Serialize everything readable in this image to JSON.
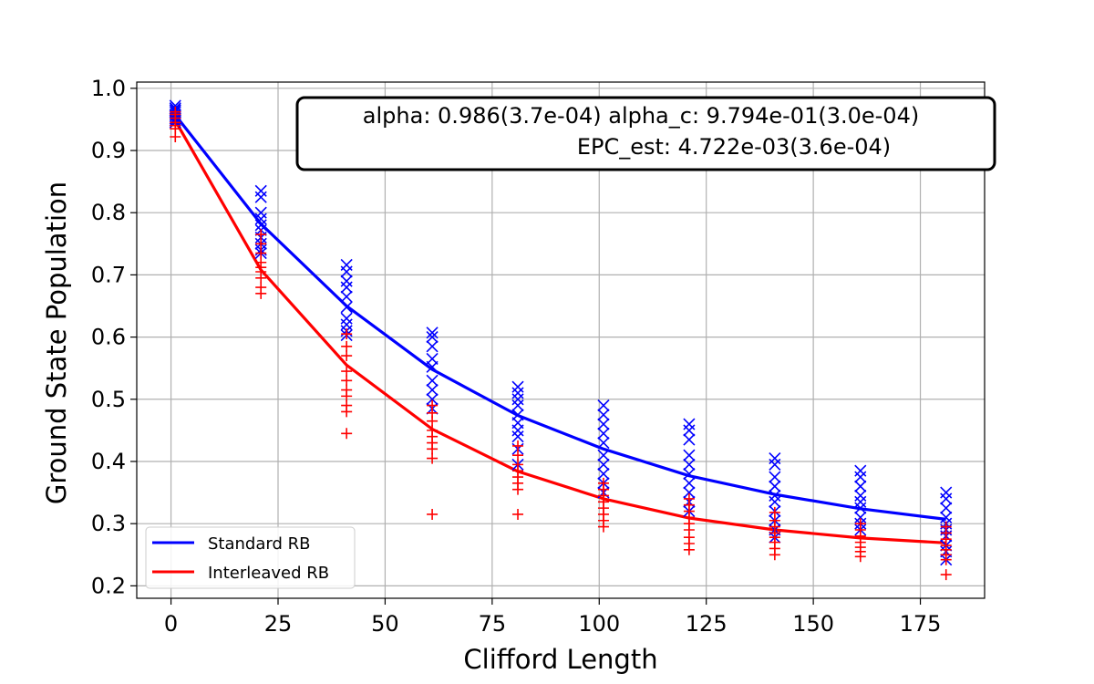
{
  "chart_data": {
    "type": "scatter",
    "xlabel": "Clifford Length",
    "ylabel": "Ground State Population",
    "xlim": [
      -8,
      190
    ],
    "ylim": [
      0.18,
      1.01
    ],
    "xticks": [
      0,
      25,
      50,
      75,
      100,
      125,
      150,
      175
    ],
    "yticks": [
      0.2,
      0.3,
      0.4,
      0.5,
      0.6,
      0.7,
      0.8,
      0.9,
      1.0
    ],
    "xtick_labels": [
      "0",
      "25",
      "50",
      "75",
      "100",
      "125",
      "150",
      "175"
    ],
    "ytick_labels": [
      "0.2",
      "0.3",
      "0.4",
      "0.5",
      "0.6",
      "0.7",
      "0.8",
      "0.9",
      "1.0"
    ],
    "grid": true,
    "legend_position": "bottom-left",
    "annotation": {
      "line1": "alpha: 0.986(3.7e-04) alpha_c: 9.794e-01(3.0e-04)",
      "line2": "EPC_est: 4.722e-03(3.6e-04)"
    },
    "series": [
      {
        "name": "Standard RB",
        "color": "#0000ff",
        "marker": "x",
        "fit_x": [
          1,
          21,
          41,
          61,
          81,
          101,
          121,
          141,
          161,
          181
        ],
        "fit_y": [
          0.957,
          0.782,
          0.65,
          0.548,
          0.474,
          0.42,
          0.377,
          0.347,
          0.324,
          0.307
        ],
        "points": [
          {
            "x": 1,
            "y": [
              0.972,
              0.968,
              0.965,
              0.962,
              0.958,
              0.955,
              0.951,
              0.948,
              0.945
            ]
          },
          {
            "x": 21,
            "y": [
              0.835,
              0.825,
              0.8,
              0.79,
              0.78,
              0.772,
              0.76,
              0.75,
              0.74,
              0.735
            ]
          },
          {
            "x": 41,
            "y": [
              0.716,
              0.705,
              0.69,
              0.68,
              0.665,
              0.648,
              0.63,
              0.62,
              0.61,
              0.603
            ]
          },
          {
            "x": 61,
            "y": [
              0.607,
              0.6,
              0.585,
              0.565,
              0.552,
              0.53,
              0.515,
              0.5,
              0.485
            ]
          },
          {
            "x": 81,
            "y": [
              0.52,
              0.51,
              0.5,
              0.49,
              0.475,
              0.462,
              0.45,
              0.44,
              0.42,
              0.395
            ]
          },
          {
            "x": 101,
            "y": [
              0.49,
              0.475,
              0.46,
              0.445,
              0.43,
              0.41,
              0.395,
              0.38,
              0.365,
              0.35
            ]
          },
          {
            "x": 121,
            "y": [
              0.46,
              0.45,
              0.435,
              0.41,
              0.395,
              0.38,
              0.365,
              0.35,
              0.335,
              0.32
            ]
          },
          {
            "x": 141,
            "y": [
              0.405,
              0.395,
              0.375,
              0.36,
              0.345,
              0.335,
              0.32,
              0.305,
              0.29,
              0.278
            ]
          },
          {
            "x": 161,
            "y": [
              0.385,
              0.375,
              0.36,
              0.345,
              0.335,
              0.325,
              0.31,
              0.3,
              0.29
            ]
          },
          {
            "x": 181,
            "y": [
              0.35,
              0.34,
              0.325,
              0.31,
              0.3,
              0.29,
              0.28,
              0.265,
              0.255,
              0.242
            ]
          }
        ]
      },
      {
        "name": "Interleaved RB",
        "color": "#ff0000",
        "marker": "+",
        "fit_x": [
          1,
          21,
          41,
          61,
          81,
          101,
          121,
          141,
          161,
          181
        ],
        "fit_y": [
          0.948,
          0.708,
          0.555,
          0.452,
          0.384,
          0.34,
          0.309,
          0.29,
          0.277,
          0.269
        ],
        "points": [
          {
            "x": 1,
            "y": [
              0.962,
              0.958,
              0.952,
              0.945,
              0.94,
              0.935,
              0.922
            ]
          },
          {
            "x": 21,
            "y": [
              0.765,
              0.75,
              0.735,
              0.72,
              0.712,
              0.705,
              0.695,
              0.68,
              0.67
            ]
          },
          {
            "x": 41,
            "y": [
              0.605,
              0.585,
              0.57,
              0.545,
              0.53,
              0.515,
              0.505,
              0.49,
              0.48,
              0.445
            ]
          },
          {
            "x": 61,
            "y": [
              0.49,
              0.478,
              0.465,
              0.45,
              0.44,
              0.43,
              0.42,
              0.405,
              0.315
            ]
          },
          {
            "x": 81,
            "y": [
              0.425,
              0.41,
              0.395,
              0.385,
              0.375,
              0.365,
              0.355,
              0.315
            ]
          },
          {
            "x": 101,
            "y": [
              0.365,
              0.355,
              0.345,
              0.335,
              0.325,
              0.315,
              0.305,
              0.295
            ]
          },
          {
            "x": 121,
            "y": [
              0.34,
              0.33,
              0.32,
              0.31,
              0.3,
              0.29,
              0.278,
              0.268,
              0.258
            ]
          },
          {
            "x": 141,
            "y": [
              0.318,
              0.305,
              0.295,
              0.285,
              0.278,
              0.27,
              0.26,
              0.25
            ]
          },
          {
            "x": 161,
            "y": [
              0.3,
              0.29,
              0.28,
              0.27,
              0.262,
              0.255,
              0.247
            ]
          },
          {
            "x": 181,
            "y": [
              0.295,
              0.285,
              0.275,
              0.265,
              0.258,
              0.25,
              0.242,
              0.218
            ]
          }
        ]
      }
    ]
  }
}
